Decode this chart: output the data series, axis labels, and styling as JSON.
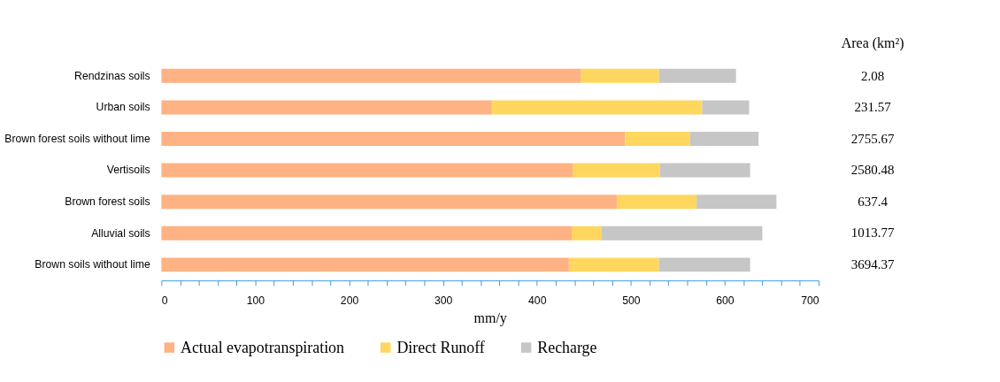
{
  "chart_data": {
    "type": "bar",
    "orientation": "horizontal",
    "stacked": true,
    "xlabel": "mm/y",
    "categories": [
      "Rendzinas soils",
      "Urban soils",
      "Brown forest soils without lime",
      "Vertisoils",
      "Brown forest soils",
      "Alluvial soils",
      "Brown soils without lime"
    ],
    "series": [
      {
        "name": "Actual evapotranspiration",
        "color": "#ffb283",
        "values": [
          447,
          352,
          494,
          438,
          485,
          437,
          434
        ]
      },
      {
        "name": "Direct Runoff",
        "color": "#ffd75e",
        "values": [
          83,
          224,
          69,
          93,
          85,
          32,
          96
        ]
      },
      {
        "name": "Recharge",
        "color": "#c6c6c6",
        "values": [
          82,
          50,
          73,
          96,
          85,
          171,
          97
        ]
      }
    ],
    "xlim": [
      0,
      700
    ],
    "xticks": [
      0,
      {
        "value": 20,
        "label": null
      },
      {
        "value": 40,
        "label": null
      },
      {
        "value": 60,
        "label": null
      },
      {
        "value": 80,
        "label": null
      },
      100,
      {
        "value": 120,
        "label": null
      },
      {
        "value": 140,
        "label": null
      },
      {
        "value": 160,
        "label": null
      },
      {
        "value": 180,
        "label": null
      },
      200,
      {
        "value": 220,
        "label": null
      },
      {
        "value": 240,
        "label": null
      },
      {
        "value": 260,
        "label": null
      },
      {
        "value": 280,
        "label": null
      },
      300,
      {
        "value": 320,
        "label": null
      },
      {
        "value": 340,
        "label": null
      },
      {
        "value": 360,
        "label": null
      },
      {
        "value": 380,
        "label": null
      },
      400,
      {
        "value": 420,
        "label": null
      },
      {
        "value": 440,
        "label": null
      },
      {
        "value": 460,
        "label": null
      },
      {
        "value": 480,
        "label": null
      },
      500,
      {
        "value": 520,
        "label": null
      },
      {
        "value": 540,
        "label": null
      },
      {
        "value": 560,
        "label": null
      },
      {
        "value": 580,
        "label": null
      },
      600,
      {
        "value": 620,
        "label": null
      },
      {
        "value": 640,
        "label": null
      },
      {
        "value": 660,
        "label": null
      },
      {
        "value": 680,
        "label": null
      },
      700
    ],
    "annotations": [
      "Area (km²)",
      "2.08",
      "231.57",
      "2755.67",
      "2580.48",
      "637.4",
      "1013.77",
      "3694.37"
    ],
    "grid": false,
    "legend": "bottom"
  }
}
